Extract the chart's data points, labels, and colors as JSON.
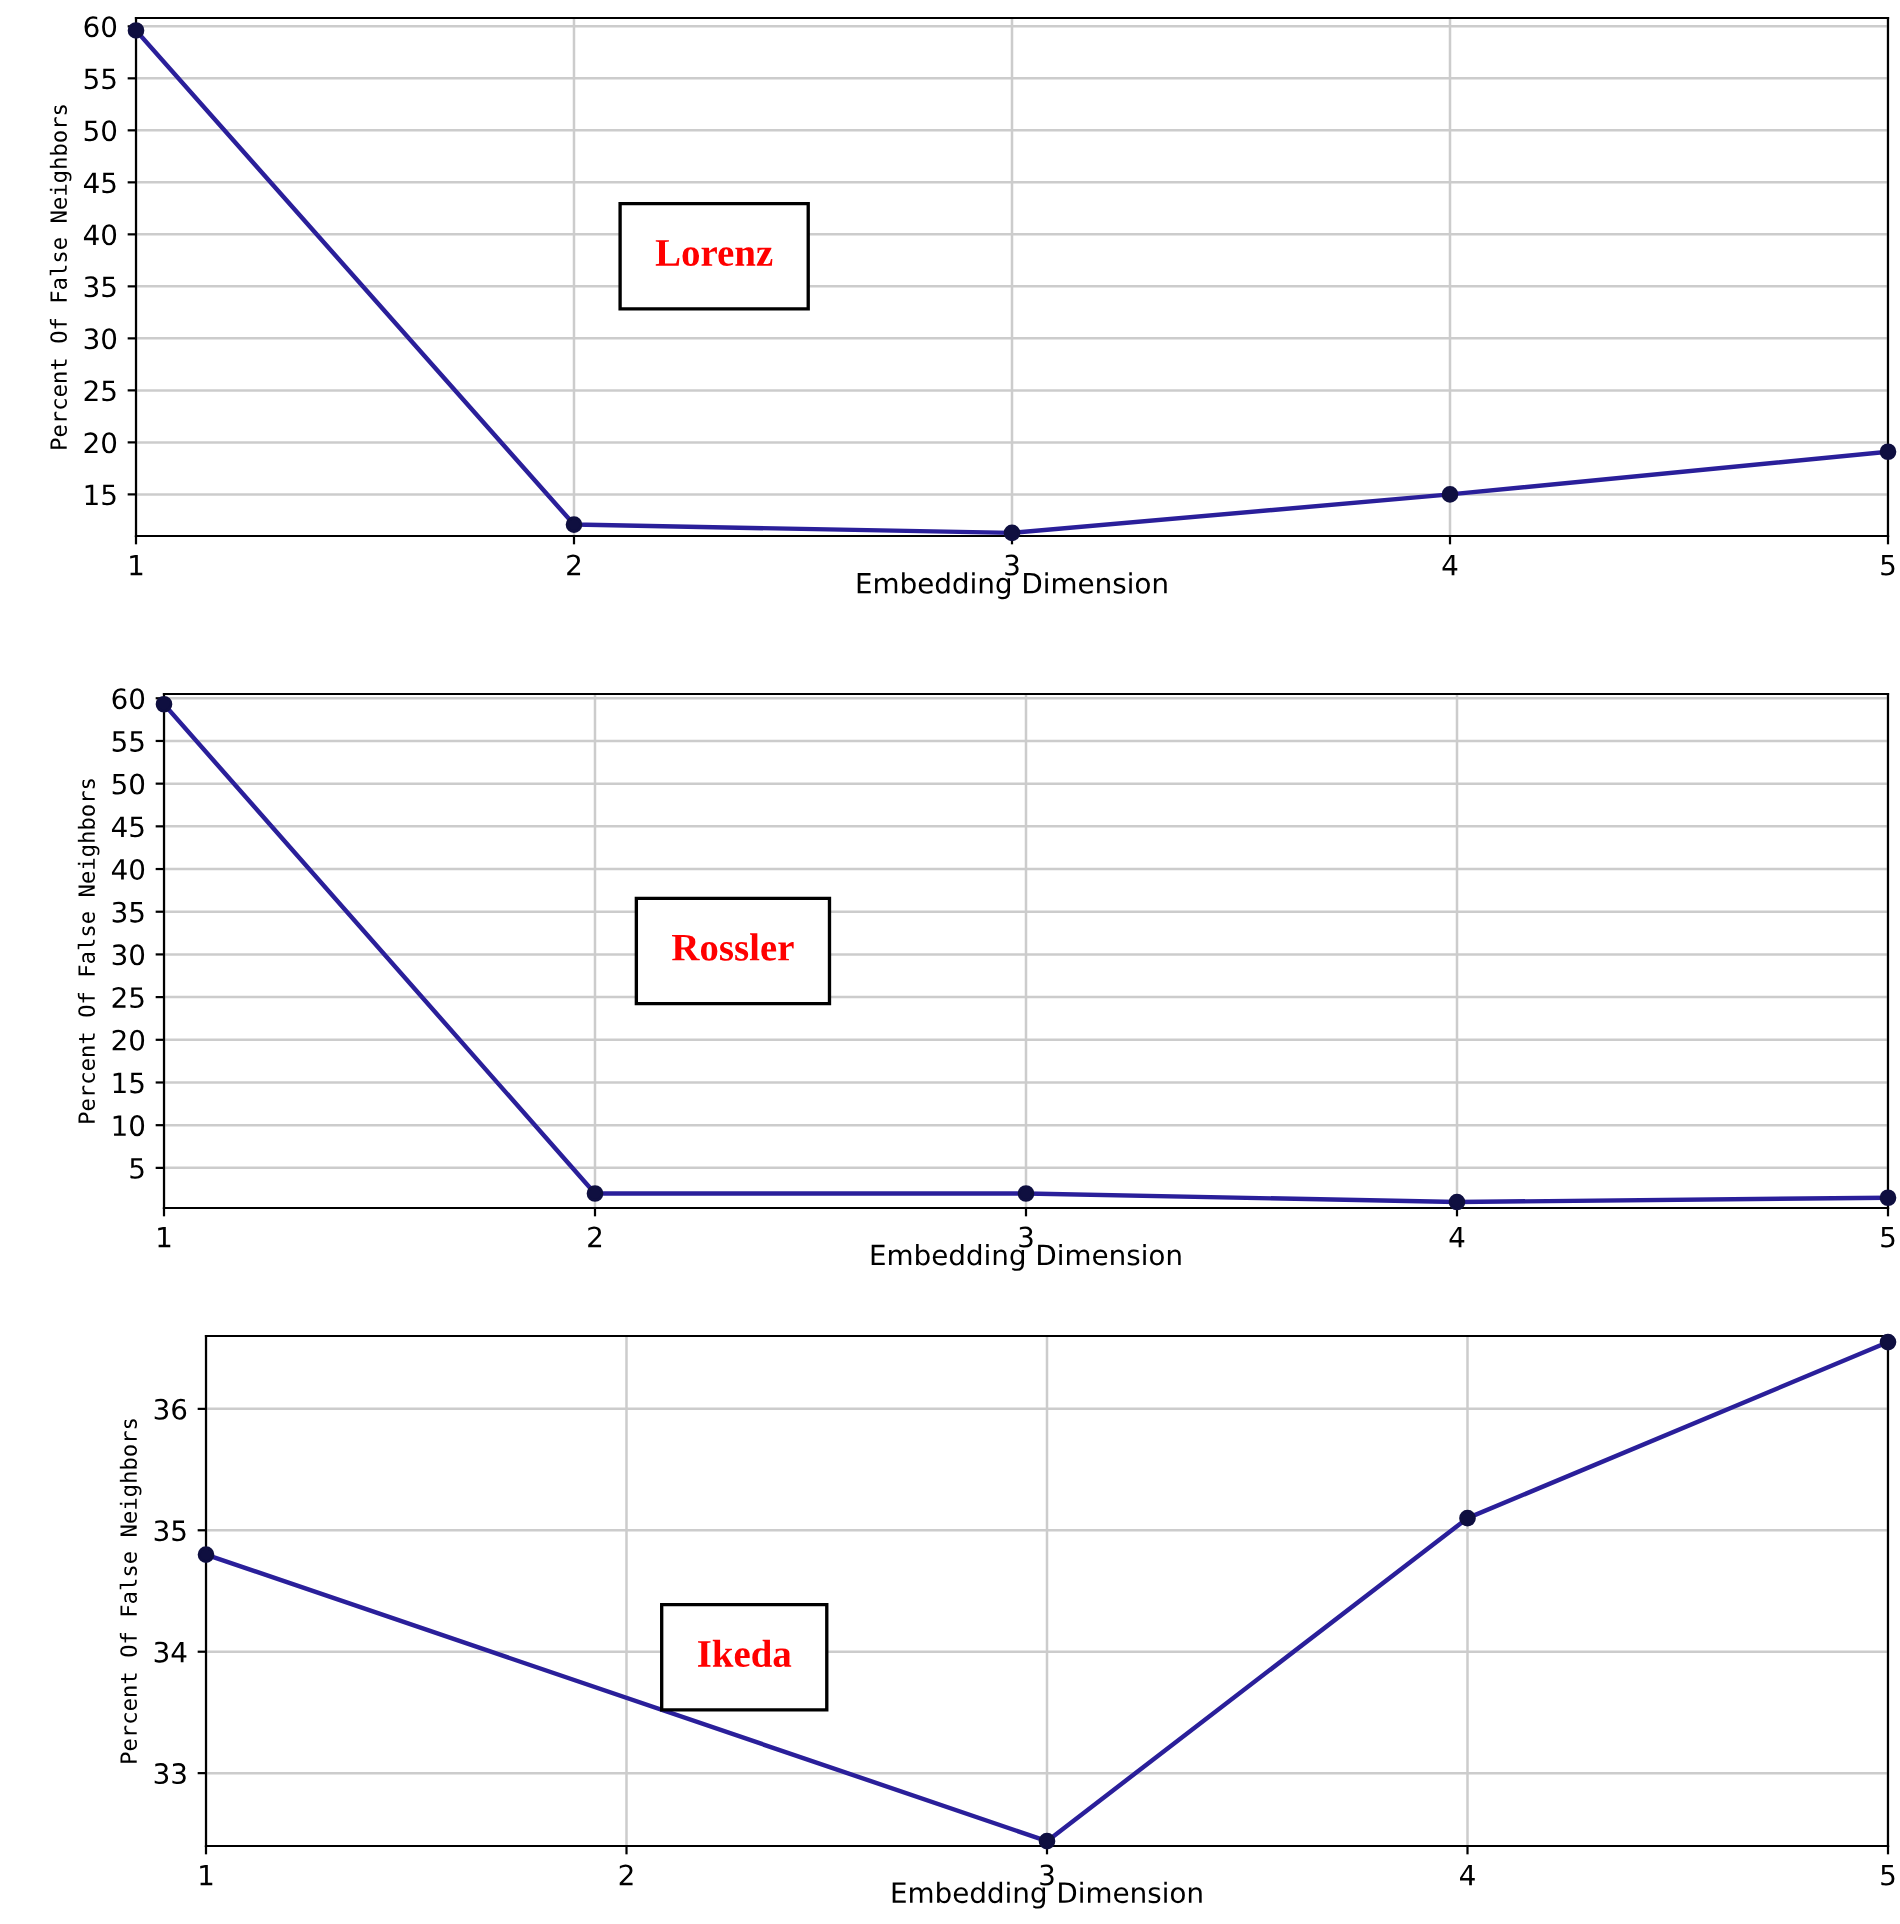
{
  "chart_data": [
    {
      "type": "line",
      "xlabel": "Embedding Dimension",
      "ylabel": "Percent Of False Neighbors",
      "annotations": [
        "Lorenz"
      ],
      "x": [
        1,
        2,
        3,
        4,
        5
      ],
      "xlim": [
        1,
        5
      ],
      "xticks": [
        1,
        2,
        3,
        4,
        5
      ],
      "ylim": [
        11,
        60.8
      ],
      "yticks": [
        15,
        20,
        25,
        30,
        35,
        40,
        45,
        50,
        55,
        60
      ],
      "grid": true,
      "marker": "circle",
      "line_style": "solid",
      "series": [
        {
          "color": "#2a1f9a",
          "values": [
            59.6,
            12.1,
            11.3,
            15,
            19.1
          ]
        }
      ]
    },
    {
      "type": "line",
      "xlabel": "Embedding Dimension",
      "ylabel": "Percent Of False Neighbors",
      "annotations": [
        "Rossler"
      ],
      "x": [
        1,
        2,
        3,
        4,
        5
      ],
      "xlim": [
        1,
        5
      ],
      "xticks": [
        1,
        2,
        3,
        4,
        5
      ],
      "ylim": [
        0.3,
        60.5
      ],
      "yticks": [
        5,
        10,
        15,
        20,
        25,
        30,
        35,
        40,
        45,
        50,
        55,
        60
      ],
      "grid": true,
      "marker": "circle",
      "line_style": "solid",
      "series": [
        {
          "color": "#2a1f9a",
          "values": [
            59.3,
            2,
            2,
            1,
            1.5
          ]
        }
      ]
    },
    {
      "type": "line",
      "xlabel": "Embedding Dimension",
      "ylabel": "Percent Of False Neighbors",
      "annotations": [
        "Ikeda"
      ],
      "x": [
        1,
        2,
        3,
        4,
        5
      ],
      "xlim": [
        1,
        5
      ],
      "xticks": [
        1,
        2,
        3,
        4,
        5
      ],
      "ylim": [
        32.4,
        36.6
      ],
      "yticks": [
        33,
        34,
        35,
        36
      ],
      "grid": true,
      "marker": "circle",
      "line_style": "solid",
      "series": [
        {
          "color": "#2a1f9a",
          "values": [
            34.8,
            null,
            32.44,
            35.1,
            36.55
          ]
        }
      ]
    }
  ]
}
